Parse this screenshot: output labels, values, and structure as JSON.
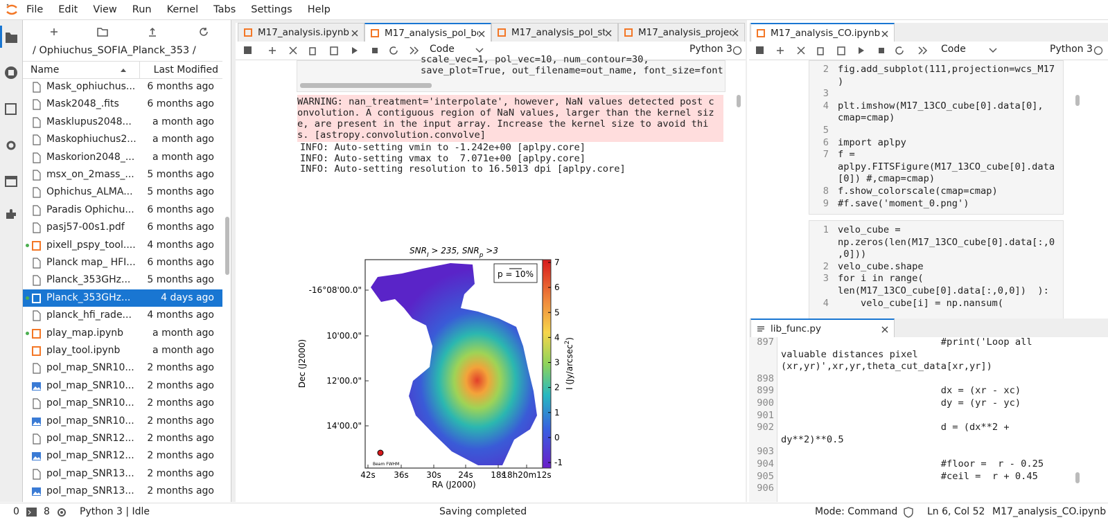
{
  "menu": [
    "File",
    "Edit",
    "View",
    "Run",
    "Kernel",
    "Tabs",
    "Settings",
    "Help"
  ],
  "file_browser": {
    "path": "/ Ophiuchus_SOFIA_Planck_353 /",
    "columns": [
      "Name",
      "Last Modified"
    ],
    "files": [
      {
        "name": "Mask_ophiuchus...",
        "modified": "6 months ago",
        "icon": "file"
      },
      {
        "name": "Mask2048_.fits",
        "modified": "6 months ago",
        "icon": "file"
      },
      {
        "name": "Masklupus2048...",
        "modified": "a month ago",
        "icon": "file"
      },
      {
        "name": "Maskophiuchus2...",
        "modified": "a month ago",
        "icon": "file"
      },
      {
        "name": "Maskorion2048_...",
        "modified": "a month ago",
        "icon": "file"
      },
      {
        "name": "msx_on_2mass_...",
        "modified": "5 months ago",
        "icon": "file"
      },
      {
        "name": "Ophichus_ALMA...",
        "modified": "5 months ago",
        "icon": "file"
      },
      {
        "name": "Paradis Ophichu...",
        "modified": "6 months ago",
        "icon": "file"
      },
      {
        "name": "pasj57-00s1.pdf",
        "modified": "6 months ago",
        "icon": "file"
      },
      {
        "name": "pixell_pspy_tool....",
        "modified": "4 months ago",
        "icon": "notebook",
        "running": true
      },
      {
        "name": "Planck map_ HFI...",
        "modified": "6 months ago",
        "icon": "file"
      },
      {
        "name": "Planck_353GHz...",
        "modified": "5 months ago",
        "icon": "file"
      },
      {
        "name": "Planck_353GHz...",
        "modified": "4 days ago",
        "icon": "notebook",
        "running": true,
        "selected": true
      },
      {
        "name": "planck_hfi_rade...",
        "modified": "4 months ago",
        "icon": "file"
      },
      {
        "name": "play_map.ipynb",
        "modified": "a month ago",
        "icon": "notebook",
        "running": true
      },
      {
        "name": "play_tool.ipynb",
        "modified": "a month ago",
        "icon": "notebook"
      },
      {
        "name": "pol_map_SNR10...",
        "modified": "2 months ago",
        "icon": "file"
      },
      {
        "name": "pol_map_SNR10...",
        "modified": "2 months ago",
        "icon": "image"
      },
      {
        "name": "pol_map_SNR10...",
        "modified": "2 months ago",
        "icon": "file"
      },
      {
        "name": "pol_map_SNR10...",
        "modified": "2 months ago",
        "icon": "image"
      },
      {
        "name": "pol_map_SNR12...",
        "modified": "2 months ago",
        "icon": "file"
      },
      {
        "name": "pol_map_SNR12...",
        "modified": "2 months ago",
        "icon": "image"
      },
      {
        "name": "pol_map_SNR13...",
        "modified": "2 months ago",
        "icon": "file"
      },
      {
        "name": "pol_map_SNR13...",
        "modified": "2 months ago",
        "icon": "image"
      }
    ]
  },
  "left_notebook": {
    "tabs": [
      "M17_analysis.ipynb",
      "M17_analysis_pol_bo",
      "M17_analysis_pol_str",
      "M17_analysis_project"
    ],
    "active_tab": 1,
    "cell_type": "Code",
    "kernel": "Python 3",
    "code_rows": [
      "scale_vec=1, pol_vec=10, num_contour=30,",
      "save_plot=True, out_filename=out_name, font_size=font"
    ],
    "warning_rows": [
      "WARNING: nan_treatment='interpolate', however, NaN values detected post c",
      "onvolution. A contiguous region of NaN values, larger than the kernel siz",
      "e, are present in the input array. Increase the kernel size to avoid thi",
      "s. [astropy.convolution.convolve]"
    ],
    "info_rows": [
      "INFO: Auto-setting vmin to -1.242e+00 [aplpy.core]",
      "INFO: Auto-setting vmax to  7.071e+00 [aplpy.core]",
      "INFO: Auto-setting resolution to 16.5013 dpi [aplpy.core]"
    ],
    "plot": {
      "title": [
        {
          "text": "SNR"
        },
        {
          "text": "I",
          "sub": true
        },
        {
          "text": " > 235, "
        },
        {
          "text": "SNR"
        },
        {
          "text": "p",
          "sub": true
        },
        {
          "text": " >3"
        }
      ],
      "xlabel": "RA (J2000)",
      "ylabel": "Dec (J2000)",
      "xticks": [
        "42s",
        "36s",
        "30s",
        "24s",
        "18s",
        "18h20m12s"
      ],
      "yticks": [
        "-16°08'00.0\"",
        "10'00.0\"",
        "12'00.0\"",
        "14'00.0\""
      ],
      "colorbar_ticks": [
        "7",
        "6",
        "5",
        "4",
        "3",
        "2",
        "1",
        "0",
        "-1"
      ],
      "colorbar_label": [
        {
          "text": "I (Jy/arcsec"
        },
        {
          "text": "2",
          "sup": true
        },
        {
          "text": ")"
        }
      ],
      "legend": "p = 10%",
      "beam_label": "Beam FWHM"
    }
  },
  "right_notebook": {
    "tab": "M17_analysis_CO.ipynb",
    "cell_type": "Code",
    "kernel": "Python 3",
    "cells": [
      {
        "rows": [
          {
            "num": "2",
            "text": "fig.add_subplot(111,projection=wcs_M17"
          },
          {
            "text": ")"
          },
          {
            "num": "3",
            "text": ""
          },
          {
            "num": "4",
            "text": "plt.imshow(M17_13CO_cube[0].data[0],"
          },
          {
            "text": "cmap=cmap)"
          },
          {
            "num": "5",
            "text": ""
          },
          {
            "num": "6",
            "text": "import aplpy"
          },
          {
            "num": "7",
            "text": "f ="
          },
          {
            "text": "aplpy.FITSFigure(M17_13CO_cube[0].data"
          },
          {
            "text": "[0]) #,cmap=cmap)"
          },
          {
            "num": "8",
            "text": "f.show_colorscale(cmap=cmap)"
          },
          {
            "num": "9",
            "text": "#f.save('moment_0.png')"
          }
        ]
      },
      {
        "rows": [
          {
            "num": "1",
            "text": "velo_cube ="
          },
          {
            "text": "np.zeros(len(M17_13CO_cube[0].data[:,0"
          },
          {
            "text": ",0]))"
          },
          {
            "num": "2",
            "text": "velo_cube.shape"
          },
          {
            "num": "3",
            "text": "for i in range("
          },
          {
            "text": "len(M17_13CO_cube[0].data[:,0,0])  ):"
          },
          {
            "num": "4",
            "text": "    velo_cube[i] = np.nansum("
          }
        ]
      }
    ]
  },
  "editor": {
    "tab": "lib_func.py",
    "rows": [
      {
        "num": "897",
        "text": "                            #print('Loop all"
      },
      {
        "text": "valuable distances pixel"
      },
      {
        "text": "(xr,yr)',xr,yr,theta_cut_data[xr,yr])"
      },
      {
        "num": "898",
        "text": ""
      },
      {
        "num": "899",
        "text": "                            dx = (xr - xc)"
      },
      {
        "num": "900",
        "text": "                            dy = (yr - yc)"
      },
      {
        "num": "901",
        "text": ""
      },
      {
        "num": "902",
        "text": "                            d = (dx**2 +"
      },
      {
        "text": "dy**2)**0.5"
      },
      {
        "num": "903",
        "text": ""
      },
      {
        "num": "904",
        "text": "                            #floor =  r - 0.25"
      },
      {
        "num": "905",
        "text": "                            #ceil =  r + 0.45"
      },
      {
        "num": "906",
        "text": ""
      }
    ]
  },
  "status_bar": {
    "terminals": "0",
    "kernels": "8",
    "kernel_status": "Python 3 | Idle",
    "message": "Saving completed",
    "mode": "Mode: Command",
    "cursor": "Ln 6, Col 52",
    "file": "M17_analysis_CO.ipynb"
  }
}
